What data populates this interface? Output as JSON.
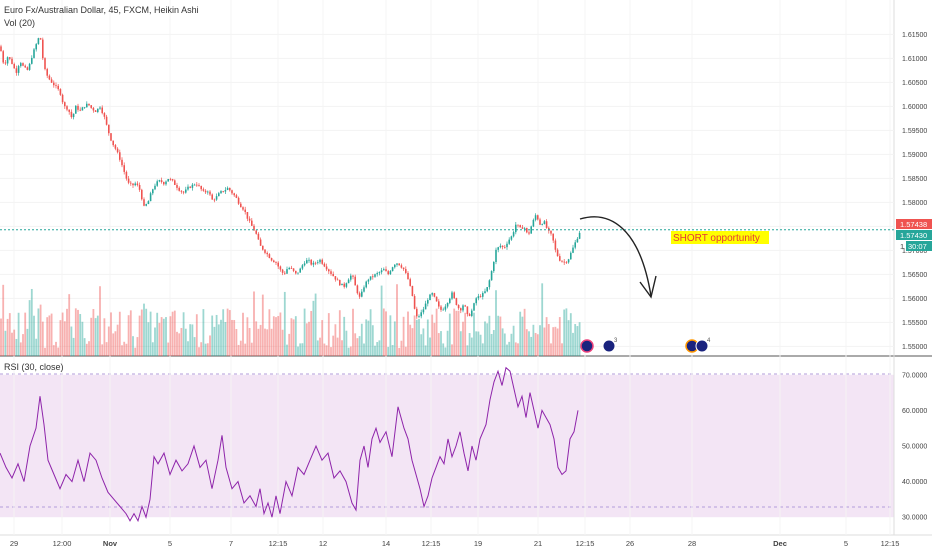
{
  "header": {
    "symbol_title": "Euro Fx/Australian Dollar, 45, FXCM, Heikin Ashi",
    "volume_label": "Vol (20)",
    "rsi_label": "RSI (30, close)"
  },
  "annotation": {
    "text": "SHORT opportunity",
    "bg": "#ffff00",
    "color": "#e53935"
  },
  "price_badges": {
    "bid": "1.57438",
    "last": "1.57430",
    "countdown": "30:07",
    "axis_prefix": "1"
  },
  "event_markers": {
    "count_a": "3",
    "count_b": "4"
  },
  "colors": {
    "up": "#26a69a",
    "down": "#ef5350",
    "rsi_line": "#8e24aa",
    "rsi_band": "#f3e5f5",
    "price_line": "#26a69a"
  },
  "chart_data": [
    {
      "type": "candlestick",
      "title": "Euro Fx/Australian Dollar, 45, FXCM, Heikin Ashi",
      "ylim": [
        1.548,
        1.618
      ],
      "yticks": [
        "1.61500",
        "1.61000",
        "1.60500",
        "1.60000",
        "1.59500",
        "1.59000",
        "1.58500",
        "1.58000",
        "1.57500",
        "1.57000",
        "1.56500",
        "1.56000",
        "1.55500",
        "1.55000"
      ],
      "x_tick_labels": [
        "29",
        "12:00",
        "Nov",
        "5",
        "7",
        "12:15",
        "12",
        "14",
        "12:15",
        "19",
        "21",
        "12:15",
        "26",
        "28",
        "Dec",
        "5",
        "12:15"
      ],
      "close_path": [
        [
          0,
          1.6125
        ],
        [
          4,
          1.6085
        ],
        [
          8,
          1.6105
        ],
        [
          12,
          1.609
        ],
        [
          16,
          1.607
        ],
        [
          20,
          1.6095
        ],
        [
          24,
          1.608
        ],
        [
          28,
          1.6075
        ],
        [
          32,
          1.6105
        ],
        [
          36,
          1.6128
        ],
        [
          40,
          1.615
        ],
        [
          44,
          1.608
        ],
        [
          48,
          1.606
        ],
        [
          52,
          1.605
        ],
        [
          56,
          1.604
        ],
        [
          60,
          1.603
        ],
        [
          64,
          1.6
        ],
        [
          68,
          1.5995
        ],
        [
          72,
          1.5975
        ],
        [
          76,
          1.6
        ],
        [
          80,
          1.599
        ],
        [
          84,
          1.6
        ],
        [
          88,
          1.6005
        ],
        [
          92,
          1.5995
        ],
        [
          96,
          1.599
        ],
        [
          100,
          1.6
        ],
        [
          104,
          1.598
        ],
        [
          108,
          1.595
        ],
        [
          112,
          1.5925
        ],
        [
          116,
          1.591
        ],
        [
          120,
          1.589
        ],
        [
          124,
          1.5865
        ],
        [
          128,
          1.584
        ],
        [
          132,
          1.5835
        ],
        [
          136,
          1.584
        ],
        [
          140,
          1.5825
        ],
        [
          144,
          1.579
        ],
        [
          148,
          1.58
        ],
        [
          152,
          1.5825
        ],
        [
          156,
          1.584
        ],
        [
          160,
          1.5845
        ],
        [
          164,
          1.584
        ],
        [
          168,
          1.585
        ],
        [
          172,
          1.5845
        ],
        [
          176,
          1.5835
        ],
        [
          180,
          1.5825
        ],
        [
          184,
          1.582
        ],
        [
          188,
          1.583
        ],
        [
          192,
          1.5835
        ],
        [
          196,
          1.584
        ],
        [
          200,
          1.583
        ],
        [
          204,
          1.582
        ],
        [
          208,
          1.5825
        ],
        [
          212,
          1.5805
        ],
        [
          216,
          1.581
        ],
        [
          220,
          1.582
        ],
        [
          224,
          1.5825
        ],
        [
          228,
          1.583
        ],
        [
          232,
          1.582
        ],
        [
          236,
          1.581
        ],
        [
          240,
          1.5795
        ],
        [
          244,
          1.5785
        ],
        [
          248,
          1.5765
        ],
        [
          252,
          1.575
        ],
        [
          256,
          1.5735
        ],
        [
          260,
          1.571
        ],
        [
          264,
          1.57
        ],
        [
          268,
          1.569
        ],
        [
          272,
          1.568
        ],
        [
          276,
          1.5675
        ],
        [
          280,
          1.566
        ],
        [
          284,
          1.565
        ],
        [
          288,
          1.5665
        ],
        [
          292,
          1.566
        ],
        [
          296,
          1.565
        ],
        [
          300,
          1.566
        ],
        [
          304,
          1.5675
        ],
        [
          308,
          1.568
        ],
        [
          312,
          1.567
        ],
        [
          316,
          1.5675
        ],
        [
          320,
          1.568
        ],
        [
          324,
          1.567
        ],
        [
          328,
          1.566
        ],
        [
          332,
          1.565
        ],
        [
          336,
          1.564
        ],
        [
          340,
          1.563
        ],
        [
          344,
          1.5625
        ],
        [
          348,
          1.564
        ],
        [
          352,
          1.565
        ],
        [
          356,
          1.562
        ],
        [
          360,
          1.56
        ],
        [
          364,
          1.5625
        ],
        [
          368,
          1.564
        ],
        [
          372,
          1.5645
        ],
        [
          376,
          1.565
        ],
        [
          380,
          1.5655
        ],
        [
          384,
          1.566
        ],
        [
          388,
          1.565
        ],
        [
          392,
          1.5665
        ],
        [
          396,
          1.5675
        ],
        [
          400,
          1.567
        ],
        [
          404,
          1.566
        ],
        [
          408,
          1.564
        ],
        [
          412,
          1.561
        ],
        [
          416,
          1.556
        ],
        [
          420,
          1.5565
        ],
        [
          424,
          1.558
        ],
        [
          428,
          1.56
        ],
        [
          432,
          1.561
        ],
        [
          436,
          1.5595
        ],
        [
          440,
          1.5575
        ],
        [
          444,
          1.558
        ],
        [
          448,
          1.5595
        ],
        [
          452,
          1.561
        ],
        [
          456,
          1.559
        ],
        [
          460,
          1.5575
        ],
        [
          464,
          1.559
        ],
        [
          468,
          1.556
        ],
        [
          472,
          1.5575
        ],
        [
          476,
          1.56
        ],
        [
          480,
          1.5605
        ],
        [
          484,
          1.561
        ],
        [
          488,
          1.5625
        ],
        [
          492,
          1.566
        ],
        [
          496,
          1.57
        ],
        [
          500,
          1.571
        ],
        [
          504,
          1.5705
        ],
        [
          508,
          1.572
        ],
        [
          512,
          1.573
        ],
        [
          516,
          1.5755
        ],
        [
          520,
          1.5745
        ],
        [
          524,
          1.575
        ],
        [
          528,
          1.573
        ],
        [
          532,
          1.5755
        ],
        [
          536,
          1.5775
        ],
        [
          540,
          1.5755
        ],
        [
          544,
          1.576
        ],
        [
          548,
          1.574
        ],
        [
          552,
          1.573
        ],
        [
          556,
          1.5695
        ],
        [
          560,
          1.568
        ],
        [
          564,
          1.5675
        ],
        [
          568,
          1.568
        ],
        [
          572,
          1.57
        ],
        [
          576,
          1.572
        ],
        [
          580,
          1.574
        ]
      ],
      "current_price": 1.5743,
      "annotation": "SHORT opportunity"
    },
    {
      "type": "line",
      "title": "RSI (30, close)",
      "ylim": [
        25,
        75
      ],
      "yticks": [
        "70.0000",
        "60.0000",
        "50.0000",
        "40.0000",
        "30.0000"
      ],
      "band": [
        30,
        70
      ],
      "series": [
        {
          "points": [
            [
              0,
              48
            ],
            [
              6,
              44
            ],
            [
              12,
              41
            ],
            [
              18,
              45
            ],
            [
              24,
              40
            ],
            [
              30,
              50
            ],
            [
              36,
              55
            ],
            [
              40,
              64
            ],
            [
              44,
              56
            ],
            [
              48,
              46
            ],
            [
              54,
              42
            ],
            [
              60,
              38
            ],
            [
              66,
              42
            ],
            [
              72,
              40
            ],
            [
              78,
              46
            ],
            [
              84,
              40
            ],
            [
              90,
              48
            ],
            [
              96,
              46
            ],
            [
              102,
              41
            ],
            [
              108,
              37
            ],
            [
              114,
              35
            ],
            [
              120,
              33
            ],
            [
              126,
              31
            ],
            [
              130,
              29
            ],
            [
              134,
              31
            ],
            [
              138,
              29
            ],
            [
              142,
              33
            ],
            [
              146,
              30
            ],
            [
              150,
              35
            ],
            [
              154,
              47
            ],
            [
              158,
              45
            ],
            [
              164,
              48
            ],
            [
              170,
              42
            ],
            [
              176,
              46
            ],
            [
              182,
              43
            ],
            [
              188,
              45
            ],
            [
              194,
              50
            ],
            [
              200,
              44
            ],
            [
              206,
              46
            ],
            [
              212,
              38
            ],
            [
              218,
              46
            ],
            [
              222,
              53
            ],
            [
              226,
              44
            ],
            [
              232,
              38
            ],
            [
              238,
              40
            ],
            [
              244,
              34
            ],
            [
              250,
              36
            ],
            [
              256,
              33
            ],
            [
              260,
              38
            ],
            [
              264,
              31
            ],
            [
              268,
              34
            ],
            [
              272,
              30
            ],
            [
              276,
              36
            ],
            [
              280,
              31
            ],
            [
              286,
              40
            ],
            [
              292,
              36
            ],
            [
              298,
              44
            ],
            [
              304,
              42
            ],
            [
              310,
              46
            ],
            [
              316,
              50
            ],
            [
              322,
              46
            ],
            [
              328,
              48
            ],
            [
              334,
              41
            ],
            [
              340,
              43
            ],
            [
              346,
              40
            ],
            [
              352,
              34
            ],
            [
              356,
              32
            ],
            [
              360,
              46
            ],
            [
              364,
              50
            ],
            [
              368,
              44
            ],
            [
              372,
              52
            ],
            [
              376,
              55
            ],
            [
              380,
              51
            ],
            [
              386,
              54
            ],
            [
              392,
              47
            ],
            [
              398,
              61
            ],
            [
              404,
              55
            ],
            [
              408,
              52
            ],
            [
              412,
              46
            ],
            [
              416,
              42
            ],
            [
              420,
              38
            ],
            [
              424,
              33
            ],
            [
              428,
              36
            ],
            [
              432,
              41
            ],
            [
              436,
              44
            ],
            [
              440,
              47
            ],
            [
              444,
              45
            ],
            [
              448,
              52
            ],
            [
              452,
              47
            ],
            [
              456,
              50
            ],
            [
              460,
              54
            ],
            [
              464,
              48
            ],
            [
              468,
              43
            ],
            [
              472,
              50
            ],
            [
              476,
              46
            ],
            [
              480,
              52
            ],
            [
              486,
              56
            ],
            [
              490,
              63
            ],
            [
              494,
              68
            ],
            [
              498,
              71
            ],
            [
              502,
              67
            ],
            [
              506,
              72
            ],
            [
              510,
              71
            ],
            [
              514,
              66
            ],
            [
              518,
              61
            ],
            [
              522,
              64
            ],
            [
              526,
              58
            ],
            [
              530,
              65
            ],
            [
              534,
              60
            ],
            [
              538,
              55
            ],
            [
              542,
              60
            ],
            [
              546,
              58
            ],
            [
              550,
              56
            ],
            [
              554,
              52
            ],
            [
              558,
              44
            ],
            [
              562,
              42
            ],
            [
              566,
              43
            ],
            [
              570,
              52
            ],
            [
              574,
              54
            ],
            [
              578,
              60
            ]
          ]
        }
      ]
    }
  ]
}
